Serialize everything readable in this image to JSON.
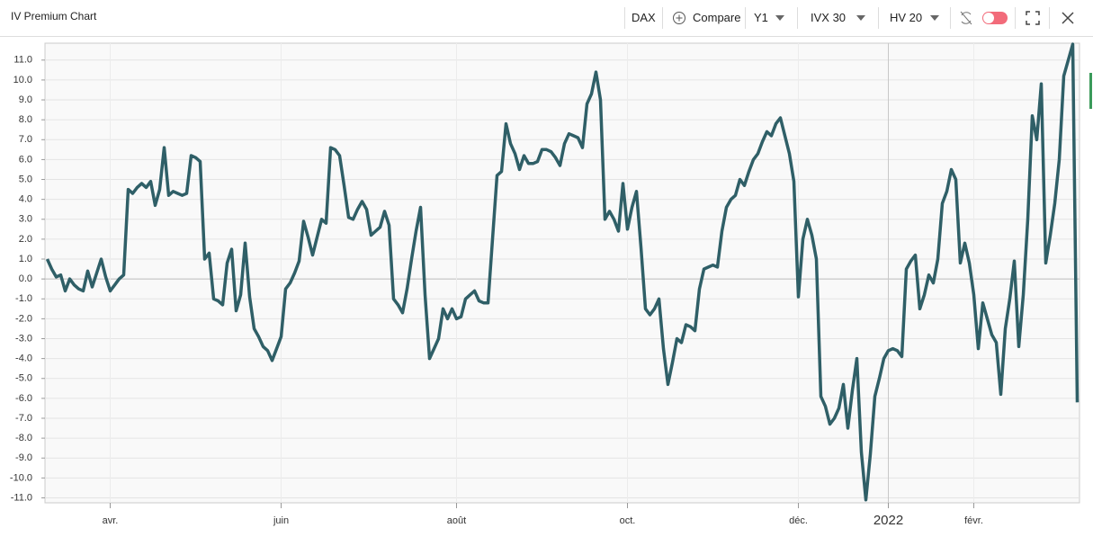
{
  "header": {
    "title": "IV Premium Chart",
    "underlying": "DAX",
    "compare": "Compare",
    "period": "Y1",
    "iv": "IVX 30",
    "hv": "HV 20"
  },
  "chart_data": {
    "type": "line",
    "categories": [
      null,
      null,
      null,
      null,
      null,
      null,
      null,
      null,
      null,
      null,
      null,
      null,
      null,
      null,
      "avr.",
      null,
      null,
      null,
      null,
      null,
      null,
      null,
      null,
      null,
      null,
      null,
      null,
      null,
      null,
      null,
      null,
      null,
      null,
      null,
      null,
      null,
      null,
      null,
      null,
      null,
      null,
      null,
      null,
      null,
      null,
      null,
      null,
      null,
      null,
      null,
      null,
      null,
      "juin",
      null,
      null,
      null,
      null,
      null,
      null,
      null,
      null,
      null,
      null,
      null,
      null,
      null,
      null,
      null,
      null,
      null,
      null,
      null,
      null,
      null,
      null,
      null,
      null,
      null,
      null,
      null,
      null,
      null,
      null,
      null,
      null,
      null,
      null,
      null,
      null,
      null,
      null,
      "août",
      null,
      null,
      null,
      null,
      null,
      null,
      null,
      null,
      null,
      null,
      null,
      null,
      null,
      null,
      null,
      null,
      null,
      null,
      null,
      null,
      null,
      null,
      null,
      null,
      null,
      null,
      null,
      null,
      null,
      null,
      null,
      null,
      null,
      null,
      null,
      null,
      null,
      "oct.",
      null,
      null,
      null,
      null,
      null,
      null,
      null,
      null,
      null,
      null,
      null,
      null,
      null,
      null,
      null,
      null,
      null,
      null,
      null,
      null,
      null,
      null,
      null,
      null,
      null,
      null,
      null,
      null,
      null,
      null,
      null,
      null,
      null,
      null,
      null,
      null,
      null,
      "déc.",
      null,
      null,
      null,
      null,
      null,
      null,
      null,
      null,
      null,
      null,
      null,
      null,
      null,
      null,
      null,
      null,
      null,
      null,
      null,
      "2022",
      null,
      null,
      null,
      null,
      null,
      null,
      null,
      null,
      null,
      null,
      null,
      null,
      null,
      null,
      null,
      null,
      null,
      null,
      "févr.",
      null,
      null,
      null,
      null,
      null,
      null,
      null,
      null,
      null,
      null,
      null,
      null,
      null,
      null,
      null,
      null,
      null,
      null,
      null,
      null,
      null,
      null,
      null
    ],
    "series": [
      {
        "color": "#2f5f67",
        "values": [
          1.0,
          0.5,
          0.1,
          0.2,
          -0.6,
          0.0,
          -0.3,
          -0.5,
          -0.6,
          0.4,
          -0.4,
          0.3,
          1.0,
          0.1,
          -0.6,
          -0.3,
          0.0,
          0.2,
          4.5,
          4.3,
          4.6,
          4.8,
          4.6,
          4.9,
          3.7,
          4.5,
          6.6,
          4.2,
          4.4,
          4.3,
          4.2,
          4.3,
          6.2,
          6.1,
          5.9,
          1.0,
          1.3,
          -1.0,
          -1.1,
          -1.3,
          0.8,
          1.5,
          -1.6,
          -0.8,
          1.8,
          -0.9,
          -2.5,
          -2.9,
          -3.4,
          -3.6,
          -4.1,
          -3.5,
          -2.9,
          -0.5,
          -0.2,
          0.3,
          0.9,
          2.9,
          2.1,
          1.2,
          2.1,
          3.0,
          2.8,
          6.6,
          6.5,
          6.2,
          4.7,
          3.1,
          3.0,
          3.5,
          3.9,
          3.5,
          2.2,
          2.4,
          2.6,
          3.4,
          2.7,
          -1.0,
          -1.3,
          -1.7,
          -0.5,
          1.0,
          2.4,
          3.6,
          -0.8,
          -4.0,
          -3.5,
          -3.0,
          -1.5,
          -2.0,
          -1.5,
          -2.0,
          -1.9,
          -1.0,
          -0.8,
          -0.6,
          -1.1,
          -1.2,
          -1.2,
          2.0,
          5.2,
          5.4,
          7.8,
          6.8,
          6.3,
          5.5,
          6.2,
          5.8,
          5.8,
          5.9,
          6.5,
          6.5,
          6.4,
          6.1,
          5.7,
          6.8,
          7.3,
          7.2,
          7.1,
          6.6,
          8.8,
          9.3,
          10.4,
          9.0,
          3.0,
          3.4,
          3.0,
          2.4,
          4.8,
          2.5,
          3.6,
          4.4,
          1.6,
          -1.5,
          -1.8,
          -1.5,
          -1.0,
          -3.5,
          -5.3,
          -4.2,
          -3.0,
          -3.2,
          -2.3,
          -2.4,
          -2.6,
          -0.5,
          0.5,
          0.6,
          0.7,
          0.6,
          2.4,
          3.6,
          4.0,
          4.2,
          5.0,
          4.7,
          5.4,
          6.0,
          6.3,
          6.9,
          7.4,
          7.2,
          7.8,
          8.1,
          7.2,
          6.3,
          4.9,
          -0.9,
          2.0,
          3.0,
          2.2,
          1.0,
          -5.9,
          -6.4,
          -7.3,
          -7.0,
          -6.5,
          -5.3,
          -7.5,
          -5.6,
          -4.0,
          -8.7,
          -11.1,
          -8.8,
          -5.9,
          -5.0,
          -4.0,
          -3.6,
          -3.5,
          -3.6,
          -3.9,
          0.5,
          0.9,
          1.2,
          -1.5,
          -0.8,
          0.2,
          -0.2,
          1.0,
          3.8,
          4.4,
          5.5,
          5.0,
          0.8,
          1.8,
          0.8,
          -0.8,
          -3.5,
          -1.2,
          -2.0,
          -2.8,
          -3.2,
          -5.8,
          -2.5,
          -1.0,
          0.9,
          -3.4,
          -0.8,
          3.0,
          8.2,
          7.0,
          9.8,
          0.8,
          2.2,
          3.8,
          6.0,
          10.2,
          11.0,
          11.8,
          -6.2
        ]
      }
    ],
    "ylim": [
      -11.25,
      11.85
    ],
    "yticks": [
      {
        "value": -11,
        "label": "-11.0"
      },
      {
        "value": -10,
        "label": "-10.0"
      },
      {
        "value": -9,
        "label": "-9.0"
      },
      {
        "value": -8,
        "label": "-8.0"
      },
      {
        "value": -7,
        "label": "-7.0"
      },
      {
        "value": -6,
        "label": "-6.0"
      },
      {
        "value": -5,
        "label": "-5.0"
      },
      {
        "value": -4,
        "label": "-4.0"
      },
      {
        "value": -3,
        "label": "-3.0"
      },
      {
        "value": -2,
        "label": "-2.0"
      },
      {
        "value": -1,
        "label": "-1.0"
      },
      {
        "value": 0,
        "label": "0.0"
      },
      {
        "value": 1,
        "label": "1.0"
      },
      {
        "value": 2,
        "label": "2.0"
      },
      {
        "value": 3,
        "label": "3.0"
      },
      {
        "value": 4,
        "label": "4.0"
      },
      {
        "value": 5,
        "label": "5.0"
      },
      {
        "value": 6,
        "label": "6.0"
      },
      {
        "value": 7,
        "label": "7.0"
      },
      {
        "value": 8,
        "label": "8.0"
      },
      {
        "value": 9,
        "label": "9.0"
      },
      {
        "value": 10,
        "label": "10.0"
      },
      {
        "value": 11,
        "label": "11.0"
      }
    ],
    "grid": true
  }
}
